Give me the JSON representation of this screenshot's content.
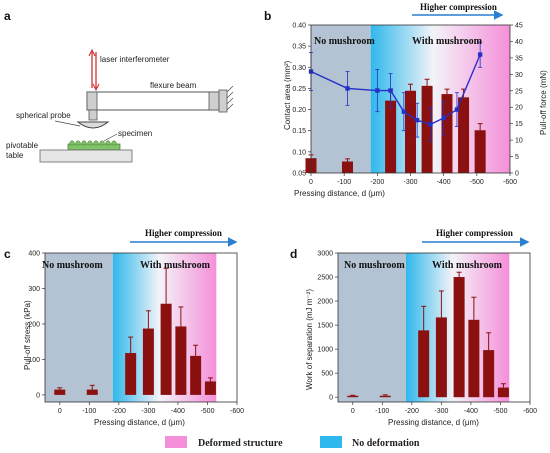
{
  "colors": {
    "gray_region": "#b4c3d3",
    "cyan": "#2fb8ec",
    "pink": "#f58fd9",
    "bar": "#8b1010",
    "line": "#2430c8",
    "axis_left_b": "#2430c8",
    "axis_right_b": "#b02020"
  },
  "diagram": {
    "panel_label": "a",
    "labels": {
      "laser": "laser interferometer",
      "flexure": "flexure beam",
      "probe": "spherical probe",
      "specimen": "specimen",
      "table": "pivotable table"
    }
  },
  "annotations": {
    "no_mushroom": "No mushroom",
    "with_mushroom": "With mushroom",
    "higher_compression": "Higher compression"
  },
  "legend": {
    "deformed": "Deformed structure",
    "no_deformation": "No deformation"
  },
  "chart_data": [
    {
      "panel": "b",
      "type": "bar",
      "xlabel": "Pressing distance, d (μm)",
      "x_ticks": [
        0,
        -100,
        -200,
        -300,
        -400,
        -500,
        -600
      ],
      "xlim": [
        0,
        -600
      ],
      "ylabel_left": "Contact area (mm²)",
      "ylim_left": [
        0.05,
        0.4
      ],
      "y_ticks_left": [
        0.05,
        0.1,
        0.15,
        0.2,
        0.25,
        0.3,
        0.35,
        0.4
      ],
      "ylabel_right": "Pull-off force (mN)",
      "ylim_right": [
        0,
        45
      ],
      "y_ticks_right": [
        0,
        5,
        10,
        15,
        20,
        25,
        30,
        35,
        40,
        45
      ],
      "no_deform_start": -180,
      "deform_end": -600,
      "bars": {
        "name": "Pull-off force (mN)",
        "axis": "right",
        "x": [
          0,
          -110,
          -240,
          -300,
          -350,
          -410,
          -460,
          -510
        ],
        "values": [
          4.5,
          3.5,
          22,
          25,
          26.5,
          24,
          23,
          13
        ],
        "errors": [
          1,
          0.8,
          3.5,
          2,
          2,
          1.5,
          2.5,
          2
        ]
      },
      "line": {
        "name": "Contact area (mm²)",
        "axis": "left",
        "x": [
          0,
          -110,
          -200,
          -240,
          -280,
          -320,
          -360,
          -400,
          -440,
          -510
        ],
        "values": [
          0.29,
          0.25,
          0.245,
          0.245,
          0.195,
          0.175,
          0.165,
          0.18,
          0.2,
          0.33
        ],
        "errors": [
          0.045,
          0.04,
          0.05,
          0.04,
          0.045,
          0.04,
          0.04,
          0.04,
          0.04,
          0.03
        ]
      }
    },
    {
      "panel": "c",
      "type": "bar",
      "xlabel": "Pressing distance, d (μm)",
      "ylabel": "Pull-off stress (kPa)",
      "x_ticks": [
        0,
        -100,
        -200,
        -300,
        -400,
        -500,
        -600
      ],
      "xlim": [
        50,
        -600
      ],
      "ylim": [
        -20,
        400
      ],
      "y_ticks": [
        0,
        100,
        200,
        300,
        400
      ],
      "no_deform_start": -180,
      "deform_end": -530,
      "x": [
        0,
        -110,
        -240,
        -300,
        -360,
        -410,
        -460,
        -510
      ],
      "values": [
        15,
        15,
        118,
        187,
        257,
        193,
        110,
        38
      ],
      "errors": [
        5,
        12,
        45,
        50,
        100,
        55,
        30,
        10
      ]
    },
    {
      "panel": "d",
      "type": "bar",
      "xlabel": "Pressing distance, d (μm)",
      "ylabel": "Work of separation (mJ m⁻²)",
      "x_ticks": [
        0,
        -100,
        -200,
        -300,
        -400,
        -500,
        -600
      ],
      "xlim": [
        50,
        -600
      ],
      "ylim": [
        -100,
        3000
      ],
      "y_ticks": [
        0,
        500,
        1000,
        1500,
        2000,
        2500,
        3000
      ],
      "no_deform_start": -180,
      "deform_end": -530,
      "x": [
        0,
        -110,
        -240,
        -300,
        -360,
        -410,
        -460,
        -510
      ],
      "values": [
        30,
        30,
        1390,
        1660,
        2500,
        1610,
        980,
        200
      ],
      "errors": [
        10,
        20,
        500,
        550,
        100,
        470,
        360,
        80
      ]
    }
  ]
}
